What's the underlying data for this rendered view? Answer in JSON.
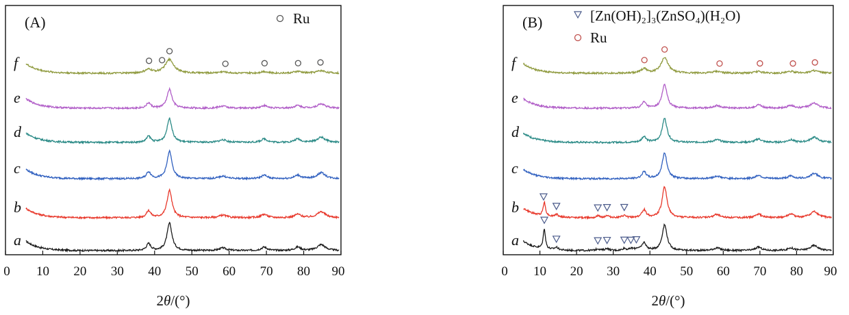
{
  "chart_data": [
    {
      "type": "line",
      "panel_label": "(A)",
      "xlabel": "2θ/(°)",
      "xlabel_parts": {
        "var": "2θ",
        "unit": "/(°)"
      },
      "xlim": [
        0,
        90
      ],
      "xticks": [
        "0",
        "10",
        "20",
        "30",
        "40",
        "50",
        "60",
        "70",
        "80",
        "90"
      ],
      "ylabel": "",
      "legend": [
        {
          "name": "Ru",
          "marker": "circle",
          "color": "#555555"
        }
      ],
      "legend_position": "top-right",
      "series": [
        {
          "name": "a",
          "color": "#1a1a1a",
          "peaks": [
            {
              "x": 38.4,
              "h": 0.4,
              "w": 0.7
            },
            {
              "x": 44.0,
              "h": 1.6,
              "w": 0.8
            },
            {
              "x": 58.3,
              "h": 0.15,
              "w": 1.2
            },
            {
              "x": 69.4,
              "h": 0.2,
              "w": 1.0
            },
            {
              "x": 78.4,
              "h": 0.2,
              "w": 1.0
            },
            {
              "x": 84.7,
              "h": 0.35,
              "w": 1.3
            }
          ]
        },
        {
          "name": "b",
          "color": "#e8382b",
          "peaks": [
            {
              "x": 38.4,
              "h": 0.4,
              "w": 0.7
            },
            {
              "x": 44.0,
              "h": 1.6,
              "w": 0.8
            },
            {
              "x": 58.3,
              "h": 0.15,
              "w": 1.2
            },
            {
              "x": 69.4,
              "h": 0.2,
              "w": 1.0
            },
            {
              "x": 78.4,
              "h": 0.2,
              "w": 1.0
            },
            {
              "x": 84.7,
              "h": 0.35,
              "w": 1.3
            }
          ]
        },
        {
          "name": "c",
          "color": "#2f5fbf",
          "peaks": [
            {
              "x": 38.4,
              "h": 0.4,
              "w": 0.7
            },
            {
              "x": 44.0,
              "h": 1.6,
              "w": 0.8
            },
            {
              "x": 58.3,
              "h": 0.15,
              "w": 1.2
            },
            {
              "x": 69.4,
              "h": 0.2,
              "w": 1.0
            },
            {
              "x": 78.4,
              "h": 0.2,
              "w": 1.0
            },
            {
              "x": 84.7,
              "h": 0.35,
              "w": 1.3
            }
          ]
        },
        {
          "name": "d",
          "color": "#2a8a86",
          "peaks": [
            {
              "x": 38.4,
              "h": 0.35,
              "w": 0.7
            },
            {
              "x": 44.0,
              "h": 1.4,
              "w": 0.8
            },
            {
              "x": 58.3,
              "h": 0.15,
              "w": 1.2
            },
            {
              "x": 69.4,
              "h": 0.2,
              "w": 1.0
            },
            {
              "x": 78.4,
              "h": 0.2,
              "w": 1.0
            },
            {
              "x": 84.7,
              "h": 0.3,
              "w": 1.3
            }
          ]
        },
        {
          "name": "e",
          "color": "#b05cc7",
          "peaks": [
            {
              "x": 38.4,
              "h": 0.3,
              "w": 0.7
            },
            {
              "x": 44.0,
              "h": 1.1,
              "w": 0.8
            },
            {
              "x": 58.3,
              "h": 0.12,
              "w": 1.2
            },
            {
              "x": 69.4,
              "h": 0.15,
              "w": 1.0
            },
            {
              "x": 78.4,
              "h": 0.15,
              "w": 1.0
            },
            {
              "x": 84.7,
              "h": 0.25,
              "w": 1.3
            }
          ]
        },
        {
          "name": "f",
          "color": "#8f9a3e",
          "peaks": [
            {
              "x": 38.4,
              "h": 0.2,
              "w": 1.2
            },
            {
              "x": 44.0,
              "h": 0.8,
              "w": 1.4
            },
            {
              "x": 58.3,
              "h": 0.08,
              "w": 1.5
            },
            {
              "x": 69.4,
              "h": 0.1,
              "w": 1.2
            },
            {
              "x": 78.4,
              "h": 0.1,
              "w": 1.2
            },
            {
              "x": 84.7,
              "h": 0.15,
              "w": 1.5
            }
          ]
        }
      ],
      "markers": [
        {
          "type": "Ru",
          "series": "f",
          "x": [
            38.5,
            42,
            44,
            59,
            69.5,
            78.5,
            84.5
          ]
        }
      ]
    },
    {
      "type": "line",
      "panel_label": "(B)",
      "xlabel": "2θ/(°)",
      "xlabel_parts": {
        "var": "2θ",
        "unit": "/(°)"
      },
      "xlim": [
        0,
        90
      ],
      "xticks": [
        "0",
        "10",
        "20",
        "30",
        "40",
        "50",
        "60",
        "70",
        "80",
        "90"
      ],
      "ylabel": "",
      "legend": [
        {
          "name": "[Zn(OH)₂]₃(ZnSO₄)(H₂O)",
          "marker": "triangle-down",
          "color": "#4a5a8a"
        },
        {
          "name": "Ru",
          "marker": "circle",
          "color": "#c0504d"
        }
      ],
      "legend_position": "top",
      "series": [
        {
          "name": "a",
          "color": "#1a1a1a",
          "peaks": [
            {
              "x": 11.2,
              "h": 1.2,
              "w": 0.35
            },
            {
              "x": 14.5,
              "h": 0.15,
              "w": 0.6
            },
            {
              "x": 25.8,
              "h": 0.1,
              "w": 0.6
            },
            {
              "x": 28.3,
              "h": 0.12,
              "w": 0.6
            },
            {
              "x": 33.0,
              "h": 0.12,
              "w": 0.6
            },
            {
              "x": 35.0,
              "h": 0.1,
              "w": 0.6
            },
            {
              "x": 36.5,
              "h": 0.1,
              "w": 0.6
            },
            {
              "x": 38.4,
              "h": 0.45,
              "w": 0.7
            },
            {
              "x": 44.0,
              "h": 1.5,
              "w": 0.8
            },
            {
              "x": 58.3,
              "h": 0.15,
              "w": 1.2
            },
            {
              "x": 69.6,
              "h": 0.2,
              "w": 1.0
            },
            {
              "x": 78.4,
              "h": 0.15,
              "w": 1.0
            },
            {
              "x": 84.8,
              "h": 0.3,
              "w": 1.3
            }
          ]
        },
        {
          "name": "b",
          "color": "#e8382b",
          "peaks": [
            {
              "x": 11.2,
              "h": 0.8,
              "w": 0.4
            },
            {
              "x": 14.5,
              "h": 0.15,
              "w": 0.6
            },
            {
              "x": 25.8,
              "h": 0.1,
              "w": 0.6
            },
            {
              "x": 28.3,
              "h": 0.12,
              "w": 0.6
            },
            {
              "x": 33.0,
              "h": 0.12,
              "w": 0.6
            },
            {
              "x": 38.4,
              "h": 0.45,
              "w": 0.7
            },
            {
              "x": 44.0,
              "h": 1.8,
              "w": 0.8
            },
            {
              "x": 58.3,
              "h": 0.2,
              "w": 1.0
            },
            {
              "x": 69.6,
              "h": 0.2,
              "w": 1.0
            },
            {
              "x": 78.4,
              "h": 0.2,
              "w": 1.0
            },
            {
              "x": 84.8,
              "h": 0.35,
              "w": 1.3
            }
          ]
        },
        {
          "name": "c",
          "color": "#2f5fbf",
          "peaks": [
            {
              "x": 38.4,
              "h": 0.4,
              "w": 0.7
            },
            {
              "x": 44.0,
              "h": 1.5,
              "w": 0.8
            },
            {
              "x": 58.3,
              "h": 0.15,
              "w": 1.2
            },
            {
              "x": 69.6,
              "h": 0.2,
              "w": 1.0
            },
            {
              "x": 78.4,
              "h": 0.15,
              "w": 1.0
            },
            {
              "x": 84.8,
              "h": 0.3,
              "w": 1.3
            }
          ]
        },
        {
          "name": "d",
          "color": "#2a8a86",
          "peaks": [
            {
              "x": 38.4,
              "h": 0.35,
              "w": 0.7
            },
            {
              "x": 44.0,
              "h": 1.4,
              "w": 0.8
            },
            {
              "x": 58.3,
              "h": 0.15,
              "w": 1.2
            },
            {
              "x": 69.6,
              "h": 0.2,
              "w": 1.0
            },
            {
              "x": 78.4,
              "h": 0.15,
              "w": 1.0
            },
            {
              "x": 84.8,
              "h": 0.3,
              "w": 1.3
            }
          ]
        },
        {
          "name": "e",
          "color": "#b05cc7",
          "peaks": [
            {
              "x": 38.4,
              "h": 0.35,
              "w": 0.7
            },
            {
              "x": 44.0,
              "h": 1.4,
              "w": 0.8
            },
            {
              "x": 58.3,
              "h": 0.15,
              "w": 1.2
            },
            {
              "x": 69.6,
              "h": 0.2,
              "w": 1.0
            },
            {
              "x": 78.4,
              "h": 0.15,
              "w": 1.0
            },
            {
              "x": 84.8,
              "h": 0.3,
              "w": 1.3
            }
          ]
        },
        {
          "name": "f",
          "color": "#8f9a3e",
          "peaks": [
            {
              "x": 38.4,
              "h": 0.25,
              "w": 1.0
            },
            {
              "x": 44.0,
              "h": 0.9,
              "w": 1.2
            },
            {
              "x": 58.3,
              "h": 0.1,
              "w": 1.5
            },
            {
              "x": 69.6,
              "h": 0.1,
              "w": 1.2
            },
            {
              "x": 78.4,
              "h": 0.1,
              "w": 1.2
            },
            {
              "x": 84.8,
              "h": 0.15,
              "w": 1.5
            }
          ]
        }
      ],
      "markers": [
        {
          "type": "Ru",
          "series": "f",
          "x": [
            38.5,
            44,
            59,
            70,
            79,
            85
          ]
        },
        {
          "type": "Zn",
          "series": "b",
          "x": [
            11,
            14.5,
            25.8,
            28.3,
            33
          ]
        },
        {
          "type": "Zn",
          "series": "a",
          "x": [
            11.2,
            14.5,
            25.8,
            28.3,
            33,
            34.8,
            36.3
          ]
        }
      ]
    }
  ]
}
